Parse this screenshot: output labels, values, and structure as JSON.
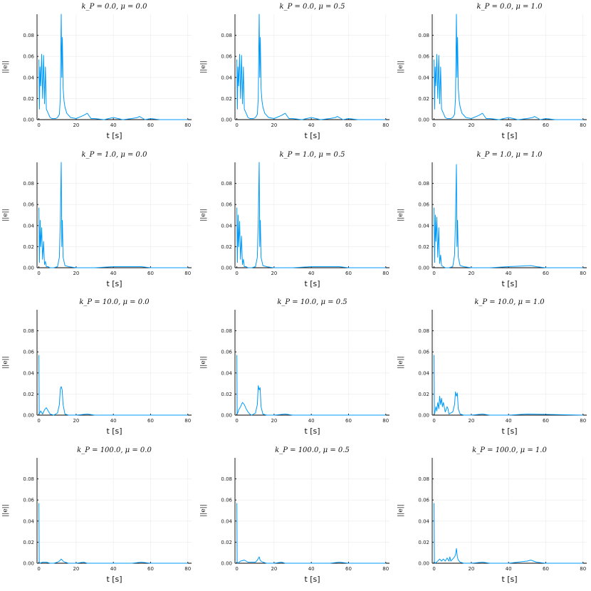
{
  "colors": {
    "series": "#009af9",
    "grid": "#ebebeb",
    "axis": "#000000"
  },
  "chart_data": [
    {
      "type": "line",
      "title": "k_P = 0.0, μ = 0.0",
      "xlabel": "t [s]",
      "ylabel": "||e||",
      "xlim": [
        -1,
        82
      ],
      "ylim": [
        0,
        0.1
      ],
      "xticks": [
        0,
        20,
        40,
        60,
        80
      ],
      "yticks": [
        0.0,
        0.02,
        0.04,
        0.06,
        0.08
      ],
      "grid": true,
      "series": [
        {
          "x": [
            0,
            0.3,
            0.6,
            1,
            1.5,
            2,
            2.5,
            3,
            3.5,
            4,
            5,
            6,
            7,
            8,
            9,
            10,
            11,
            11.5,
            12,
            12.3,
            12.6,
            13,
            13.5,
            14,
            15,
            17,
            20,
            24,
            26,
            28,
            30,
            35,
            40,
            45,
            50,
            53,
            54,
            55,
            57,
            60,
            65,
            70,
            80
          ],
          "y": [
            0.057,
            0.01,
            0.05,
            0.032,
            0.062,
            0.02,
            0.061,
            0.015,
            0.05,
            0.01,
            0.006,
            0.002,
            0.001,
            0.001,
            0.001,
            0.002,
            0.005,
            0.02,
            0.1,
            0.04,
            0.078,
            0.03,
            0.018,
            0.012,
            0.006,
            0.002,
            0.001,
            0.004,
            0.006,
            0.001,
            0.001,
            0.0,
            0.002,
            0.0,
            0.001,
            0.002,
            0.003,
            0.002,
            0.0,
            0.001,
            0.0,
            0.0,
            0.0
          ]
        }
      ]
    },
    {
      "type": "line",
      "title": "k_P = 0.0, μ = 0.5",
      "xlabel": "t [s]",
      "ylabel": "||e||",
      "xlim": [
        -1,
        82
      ],
      "ylim": [
        0,
        0.1
      ],
      "xticks": [
        0,
        20,
        40,
        60,
        80
      ],
      "yticks": [
        0.0,
        0.02,
        0.04,
        0.06,
        0.08
      ],
      "grid": true,
      "series": [
        {
          "x": [
            0,
            0.3,
            0.6,
            1,
            1.5,
            2,
            2.5,
            3,
            3.5,
            4,
            5,
            6,
            7,
            8,
            9,
            10,
            11,
            11.5,
            12,
            12.3,
            12.6,
            13,
            13.5,
            14,
            15,
            17,
            20,
            24,
            26,
            28,
            30,
            35,
            40,
            45,
            50,
            53,
            54,
            55,
            57,
            60,
            65,
            70,
            80
          ],
          "y": [
            0.057,
            0.01,
            0.05,
            0.032,
            0.062,
            0.02,
            0.061,
            0.015,
            0.05,
            0.01,
            0.006,
            0.002,
            0.001,
            0.001,
            0.001,
            0.002,
            0.005,
            0.02,
            0.1,
            0.04,
            0.078,
            0.03,
            0.018,
            0.012,
            0.006,
            0.002,
            0.001,
            0.004,
            0.006,
            0.001,
            0.001,
            0.0,
            0.002,
            0.0,
            0.001,
            0.002,
            0.003,
            0.002,
            0.0,
            0.001,
            0.0,
            0.0,
            0.0
          ]
        }
      ]
    },
    {
      "type": "line",
      "title": "k_P = 0.0, μ = 1.0",
      "xlabel": "t [s]",
      "ylabel": "||e||",
      "xlim": [
        -1,
        82
      ],
      "ylim": [
        0,
        0.1
      ],
      "xticks": [
        0,
        20,
        40,
        60,
        80
      ],
      "yticks": [
        0.0,
        0.02,
        0.04,
        0.06,
        0.08
      ],
      "grid": true,
      "series": [
        {
          "x": [
            0,
            0.3,
            0.6,
            1,
            1.5,
            2,
            2.5,
            3,
            3.5,
            4,
            5,
            6,
            7,
            8,
            9,
            10,
            11,
            11.5,
            12,
            12.3,
            12.6,
            13,
            13.5,
            14,
            15,
            17,
            20,
            24,
            26,
            28,
            30,
            35,
            40,
            45,
            50,
            53,
            54,
            55,
            57,
            60,
            65,
            70,
            80
          ],
          "y": [
            0.057,
            0.01,
            0.05,
            0.032,
            0.062,
            0.02,
            0.061,
            0.015,
            0.05,
            0.01,
            0.006,
            0.002,
            0.001,
            0.001,
            0.001,
            0.002,
            0.005,
            0.02,
            0.1,
            0.04,
            0.078,
            0.03,
            0.018,
            0.012,
            0.006,
            0.002,
            0.001,
            0.004,
            0.006,
            0.001,
            0.001,
            0.0,
            0.002,
            0.0,
            0.001,
            0.002,
            0.003,
            0.002,
            0.0,
            0.001,
            0.0,
            0.0,
            0.0
          ]
        }
      ]
    },
    {
      "type": "line",
      "title": "k_P = 1.0, μ = 0.0",
      "xlabel": "t [s]",
      "ylabel": "||e||",
      "xlim": [
        -1,
        82
      ],
      "ylim": [
        0,
        0.1
      ],
      "xticks": [
        0,
        20,
        40,
        60,
        80
      ],
      "yticks": [
        0.0,
        0.02,
        0.04,
        0.06,
        0.08
      ],
      "grid": true,
      "series": [
        {
          "x": [
            0,
            0.3,
            0.7,
            1,
            1.5,
            2,
            2.5,
            3,
            3.5,
            4,
            5,
            6,
            8,
            10,
            11,
            11.5,
            12,
            12.3,
            12.6,
            13,
            14,
            16,
            20,
            30,
            40,
            52,
            55,
            60,
            80
          ],
          "y": [
            0.057,
            0.005,
            0.045,
            0.02,
            0.038,
            0.008,
            0.025,
            0.003,
            0.006,
            0.001,
            0.001,
            0.0,
            0.0,
            0.001,
            0.01,
            0.045,
            0.1,
            0.02,
            0.045,
            0.01,
            0.002,
            0.001,
            0.0,
            0.0,
            0.001,
            0.001,
            0.001,
            0.0,
            0.0
          ]
        }
      ]
    },
    {
      "type": "line",
      "title": "k_P = 1.0, μ = 0.5",
      "xlabel": "t [s]",
      "ylabel": "||e||",
      "xlim": [
        -1,
        82
      ],
      "ylim": [
        0,
        0.1
      ],
      "xticks": [
        0,
        20,
        40,
        60,
        80
      ],
      "yticks": [
        0.0,
        0.02,
        0.04,
        0.06,
        0.08
      ],
      "grid": true,
      "series": [
        {
          "x": [
            0,
            0.3,
            0.7,
            1,
            1.5,
            2,
            2.5,
            3,
            3.5,
            4,
            5,
            6,
            8,
            10,
            11,
            11.5,
            12,
            12.3,
            12.6,
            13,
            14,
            16,
            20,
            30,
            40,
            52,
            55,
            60,
            80
          ],
          "y": [
            0.057,
            0.005,
            0.05,
            0.02,
            0.044,
            0.008,
            0.03,
            0.003,
            0.008,
            0.001,
            0.001,
            0.0,
            0.0,
            0.001,
            0.01,
            0.045,
            0.1,
            0.02,
            0.045,
            0.01,
            0.002,
            0.001,
            0.0,
            0.0,
            0.001,
            0.001,
            0.001,
            0.0,
            0.0
          ]
        }
      ]
    },
    {
      "type": "line",
      "title": "k_P = 1.0, μ = 1.0",
      "xlabel": "t [s]",
      "ylabel": "||e||",
      "xlim": [
        -1,
        82
      ],
      "ylim": [
        0,
        0.1
      ],
      "xticks": [
        0,
        20,
        40,
        60,
        80
      ],
      "yticks": [
        0.0,
        0.02,
        0.04,
        0.06,
        0.08
      ],
      "grid": true,
      "series": [
        {
          "x": [
            0,
            0.3,
            0.7,
            1,
            1.5,
            2,
            2.5,
            3,
            3.5,
            4,
            5,
            6,
            8,
            10,
            11,
            11.5,
            12,
            12.3,
            12.6,
            13,
            14,
            16,
            20,
            30,
            40,
            52,
            55,
            60,
            80
          ],
          "y": [
            0.057,
            0.005,
            0.05,
            0.025,
            0.048,
            0.01,
            0.038,
            0.004,
            0.012,
            0.002,
            0.001,
            0.0,
            0.0,
            0.001,
            0.012,
            0.045,
            0.098,
            0.02,
            0.045,
            0.01,
            0.002,
            0.001,
            0.0,
            0.0,
            0.001,
            0.002,
            0.001,
            0.0,
            0.0
          ]
        }
      ]
    },
    {
      "type": "line",
      "title": "k_P = 10.0, μ = 0.0",
      "xlabel": "t [s]",
      "ylabel": "||e||",
      "xlim": [
        -1,
        82
      ],
      "ylim": [
        0,
        0.1
      ],
      "xticks": [
        0,
        20,
        40,
        60,
        80
      ],
      "yticks": [
        0.0,
        0.02,
        0.04,
        0.06,
        0.08
      ],
      "grid": true,
      "series": [
        {
          "x": [
            0,
            0.2,
            0.5,
            1,
            2,
            3,
            4,
            5,
            6,
            8,
            10,
            11,
            11.5,
            12,
            12.5,
            13,
            14,
            16,
            20,
            26,
            30,
            40,
            80
          ],
          "y": [
            0.057,
            0.001,
            0.002,
            0.004,
            0.001,
            0.005,
            0.007,
            0.004,
            0.001,
            0.0,
            0.002,
            0.01,
            0.025,
            0.027,
            0.024,
            0.01,
            0.001,
            0.0,
            0.0,
            0.001,
            0.0,
            0.0,
            0.0
          ]
        }
      ]
    },
    {
      "type": "line",
      "title": "k_P = 10.0, μ = 0.5",
      "xlabel": "t [s]",
      "ylabel": "||e||",
      "xlim": [
        -1,
        82
      ],
      "ylim": [
        0,
        0.1
      ],
      "xticks": [
        0,
        20,
        40,
        60,
        80
      ],
      "yticks": [
        0.0,
        0.02,
        0.04,
        0.06,
        0.08
      ],
      "grid": true,
      "series": [
        {
          "x": [
            0,
            0.2,
            0.5,
            1,
            2,
            3,
            4,
            5,
            6,
            7,
            8,
            10,
            11,
            11.5,
            12,
            12.5,
            13,
            14,
            16,
            20,
            26,
            30,
            40,
            80
          ],
          "y": [
            0.057,
            0.001,
            0.002,
            0.005,
            0.008,
            0.012,
            0.01,
            0.006,
            0.003,
            0.001,
            0.0,
            0.002,
            0.01,
            0.028,
            0.024,
            0.026,
            0.008,
            0.001,
            0.0,
            0.0,
            0.001,
            0.0,
            0.0,
            0.0
          ]
        }
      ]
    },
    {
      "type": "line",
      "title": "k_P = 10.0, μ = 1.0",
      "xlabel": "t [s]",
      "ylabel": "||e||",
      "xlim": [
        -1,
        82
      ],
      "ylim": [
        0,
        0.1
      ],
      "xticks": [
        0,
        20,
        40,
        60,
        80
      ],
      "yticks": [
        0.0,
        0.02,
        0.04,
        0.06,
        0.08
      ],
      "grid": true,
      "series": [
        {
          "x": [
            0,
            0.2,
            0.5,
            1,
            1.5,
            2,
            2.5,
            3,
            3.5,
            4,
            4.5,
            5,
            6,
            7,
            7.5,
            8,
            9,
            10,
            11,
            11.5,
            12,
            12.5,
            13,
            14,
            16,
            20,
            26,
            30,
            40,
            50,
            80
          ],
          "y": [
            0.057,
            0.001,
            0.003,
            0.008,
            0.004,
            0.012,
            0.006,
            0.018,
            0.01,
            0.016,
            0.008,
            0.012,
            0.003,
            0.008,
            0.006,
            0.001,
            0.002,
            0.003,
            0.01,
            0.022,
            0.018,
            0.021,
            0.006,
            0.001,
            0.0,
            0.0,
            0.001,
            0.0,
            0.0,
            0.001,
            0.0
          ]
        }
      ]
    },
    {
      "type": "line",
      "title": "k_P = 100.0, μ = 0.0",
      "xlabel": "t [s]",
      "ylabel": "||e||",
      "xlim": [
        -1,
        82
      ],
      "ylim": [
        0,
        0.1
      ],
      "xticks": [
        0,
        20,
        40,
        60,
        80
      ],
      "yticks": [
        0.0,
        0.02,
        0.04,
        0.06,
        0.08
      ],
      "grid": true,
      "series": [
        {
          "x": [
            0,
            0.2,
            0.5,
            2,
            4,
            6,
            8,
            10,
            11,
            12,
            13,
            14,
            16,
            20,
            24,
            26,
            30,
            40,
            50,
            55,
            60,
            80
          ],
          "y": [
            0.057,
            0.001,
            0.0,
            0.001,
            0.001,
            0.0,
            0.0,
            0.001,
            0.002,
            0.004,
            0.002,
            0.001,
            0.0,
            0.0,
            0.001,
            0.0,
            0.0,
            0.0,
            0.0,
            0.001,
            0.0,
            0.0
          ]
        }
      ]
    },
    {
      "type": "line",
      "title": "k_P = 100.0, μ = 0.5",
      "xlabel": "t [s]",
      "ylabel": "||e||",
      "xlim": [
        -1,
        82
      ],
      "ylim": [
        0,
        0.1
      ],
      "xticks": [
        0,
        20,
        40,
        60,
        80
      ],
      "yticks": [
        0.0,
        0.02,
        0.04,
        0.06,
        0.08
      ],
      "grid": true,
      "series": [
        {
          "x": [
            0,
            0.2,
            0.5,
            2,
            4,
            6,
            8,
            10,
            11,
            12,
            12.5,
            13,
            14,
            16,
            20,
            24,
            26,
            30,
            40,
            50,
            55,
            60,
            80
          ],
          "y": [
            0.057,
            0.001,
            0.0,
            0.002,
            0.003,
            0.001,
            0.001,
            0.001,
            0.003,
            0.006,
            0.003,
            0.002,
            0.001,
            0.0,
            0.0,
            0.001,
            0.0,
            0.0,
            0.0,
            0.0,
            0.001,
            0.0,
            0.0
          ]
        }
      ]
    },
    {
      "type": "line",
      "title": "k_P = 100.0, μ = 1.0",
      "xlabel": "t [s]",
      "ylabel": "||e||",
      "xlim": [
        -1,
        82
      ],
      "ylim": [
        0,
        0.1
      ],
      "xticks": [
        0,
        20,
        40,
        60,
        80
      ],
      "yticks": [
        0.0,
        0.02,
        0.04,
        0.06,
        0.08
      ],
      "grid": true,
      "series": [
        {
          "x": [
            0,
            0.2,
            0.5,
            2,
            3,
            4,
            5,
            6,
            7,
            8,
            8.5,
            9,
            10,
            11,
            11.5,
            12,
            12.5,
            13,
            14,
            16,
            20,
            26,
            30,
            40,
            50,
            52,
            55,
            60,
            80
          ],
          "y": [
            0.057,
            0.001,
            0.0,
            0.002,
            0.004,
            0.002,
            0.004,
            0.002,
            0.005,
            0.002,
            0.006,
            0.002,
            0.004,
            0.006,
            0.008,
            0.014,
            0.006,
            0.003,
            0.001,
            0.0,
            0.0,
            0.001,
            0.0,
            0.0,
            0.002,
            0.003,
            0.001,
            0.0,
            0.0
          ]
        }
      ]
    }
  ]
}
